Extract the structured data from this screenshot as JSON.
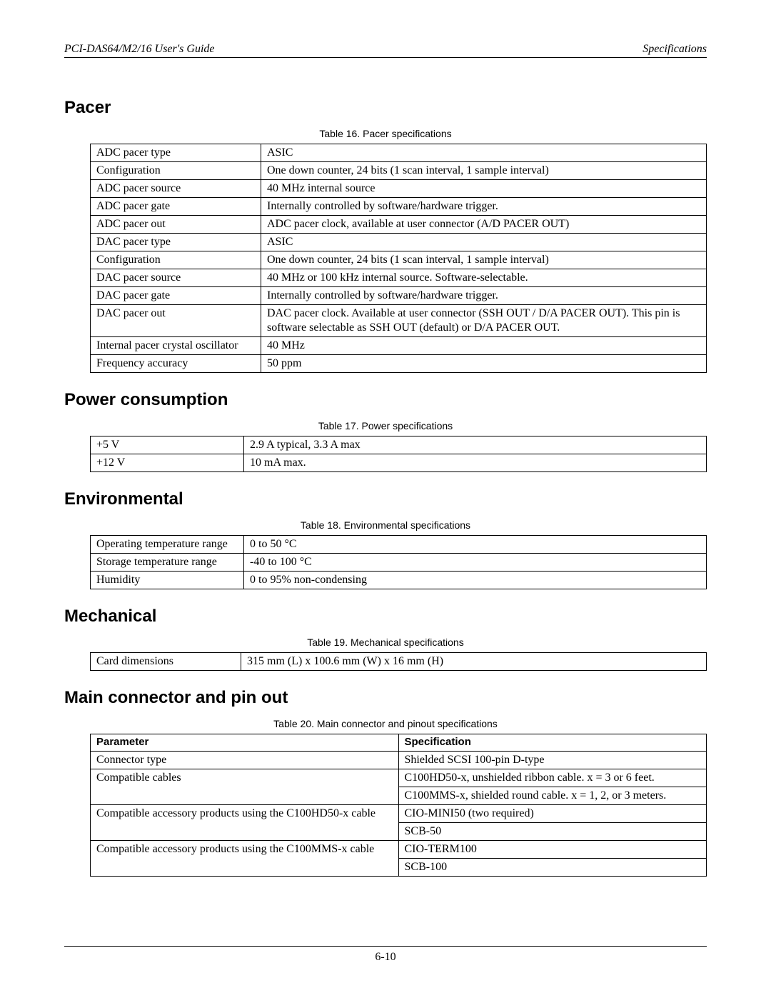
{
  "header": {
    "left": "PCI-DAS64/M2/16 User's Guide",
    "right": "Specifications"
  },
  "footer": {
    "page_number": "6-10"
  },
  "pacer": {
    "heading": "Pacer",
    "caption": "Table 16. Pacer specifications",
    "rows": [
      [
        "ADC pacer type",
        "ASIC"
      ],
      [
        "Configuration",
        "One down counter, 24 bits (1 scan interval, 1 sample interval)"
      ],
      [
        "ADC pacer source",
        "40 MHz internal source"
      ],
      [
        "ADC pacer gate",
        "Internally controlled by software/hardware trigger."
      ],
      [
        "ADC pacer out",
        "ADC pacer clock, available at user connector (A/D PACER OUT)"
      ],
      [
        "DAC pacer type",
        "ASIC"
      ],
      [
        "Configuration",
        "One down counter, 24 bits (1 scan interval, 1 sample interval)"
      ],
      [
        "DAC pacer source",
        "40 MHz or 100 kHz internal source. Software-selectable."
      ],
      [
        "DAC pacer gate",
        "Internally controlled by software/hardware trigger."
      ],
      [
        "DAC pacer out",
        "DAC pacer clock. Available at user connector (SSH OUT / D/A PACER OUT). This pin is software selectable as SSH OUT (default) or D/A PACER OUT."
      ],
      [
        "Internal pacer crystal oscillator",
        "40 MHz"
      ],
      [
        "Frequency accuracy",
        "50 ppm"
      ]
    ]
  },
  "power": {
    "heading": "Power consumption",
    "caption": "Table 17. Power specifications",
    "rows": [
      [
        "+5 V",
        "2.9 A typical, 3.3 A max"
      ],
      [
        "+12 V",
        "10 mA max."
      ]
    ]
  },
  "env": {
    "heading": "Environmental",
    "caption": "Table 18. Environmental specifications",
    "rows": [
      [
        "Operating temperature range",
        "0 to 50 °C"
      ],
      [
        "Storage temperature range",
        "-40 to 100 °C"
      ],
      [
        "Humidity",
        "0 to 95% non-condensing"
      ]
    ]
  },
  "mech": {
    "heading": "Mechanical",
    "caption": "Table 19. Mechanical specifications",
    "rows": [
      [
        "Card dimensions",
        "315 mm (L) x 100.6 mm (W) x 16 mm (H)"
      ]
    ]
  },
  "conn": {
    "heading": "Main connector and pin out",
    "caption": "Table 20. Main connector and pinout specifications",
    "columns": [
      "Parameter",
      "Specification"
    ],
    "rows": [
      {
        "param": "Connector type",
        "specs": [
          "Shielded SCSI 100-pin D-type"
        ]
      },
      {
        "param": "Compatible cables",
        "specs": [
          "C100HD50-x, unshielded ribbon cable. x = 3 or 6 feet.",
          "C100MMS-x, shielded round cable. x = 1, 2, or 3 meters."
        ]
      },
      {
        "param": "Compatible accessory products using the C100HD50-x cable",
        "specs": [
          "CIO-MINI50 (two required)",
          "SCB-50"
        ]
      },
      {
        "param": "Compatible accessory products using the C100MMS-x cable",
        "specs": [
          "CIO-TERM100",
          "SCB-100"
        ]
      }
    ]
  }
}
